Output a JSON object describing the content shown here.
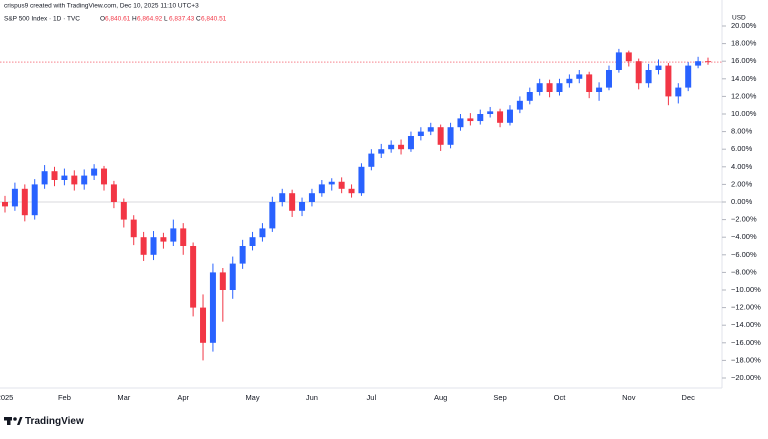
{
  "header": {
    "caption": "crispus9 created with TradingView.com, Dec 10, 2025 11:10 UTC+3",
    "symbol": "S&P 500 Index · 1D · TVC",
    "ohlc": [
      {
        "key": "O",
        "value": "6,840.61"
      },
      {
        "key": "H",
        "value": "6,864.92"
      },
      {
        "key": "L",
        "value": "6,837.43"
      },
      {
        "key": "C",
        "value": "6,840.51"
      }
    ],
    "currency": "USD"
  },
  "footer": {
    "brand": "TradingView"
  },
  "chart_data": {
    "type": "candlestick",
    "categories": [
      "2025",
      null,
      null,
      null,
      null,
      null,
      "Feb",
      null,
      null,
      null,
      null,
      null,
      "Mar",
      null,
      null,
      null,
      null,
      null,
      "Apr",
      null,
      null,
      null,
      null,
      null,
      null,
      "May",
      null,
      null,
      null,
      null,
      null,
      "Jun",
      null,
      null,
      null,
      null,
      null,
      "Jul",
      null,
      null,
      null,
      null,
      null,
      null,
      "Aug",
      null,
      null,
      null,
      null,
      null,
      "Sep",
      null,
      null,
      null,
      null,
      null,
      "Oct",
      null,
      null,
      null,
      null,
      null,
      null,
      "Nov",
      null,
      null,
      null,
      null,
      null,
      "Dec",
      null,
      null
    ],
    "open": [
      0,
      -0.5,
      1.5,
      -1.5,
      2,
      3.5,
      2.5,
      3,
      2,
      3,
      3.8,
      2,
      0,
      -2,
      -4,
      -6,
      -4,
      -4.5,
      -3,
      -5,
      -12,
      -16,
      -8,
      -10,
      -7,
      -5,
      -4,
      -3,
      0,
      1,
      -1,
      0,
      1,
      2,
      2.3,
      1.5,
      1,
      4,
      5.5,
      6,
      6.5,
      6,
      7.5,
      8,
      8.5,
      6.5,
      8.5,
      9.5,
      9.2,
      10,
      10.3,
      9,
      10.5,
      11.5,
      12.5,
      13.5,
      12.5,
      13.5,
      14,
      14.5,
      12.5,
      13,
      15,
      17,
      16,
      13.5,
      15,
      15.5,
      12,
      13,
      15.5,
      16
    ],
    "high": [
      0.7,
      2.2,
      2,
      2.6,
      4.2,
      4,
      3.8,
      3.6,
      3.7,
      4.3,
      4.1,
      2.4,
      0.4,
      -1.5,
      -3.4,
      -3.3,
      -3.5,
      -2,
      -2.4,
      -4.6,
      -10.5,
      -7,
      -7.5,
      -6.2,
      -4.3,
      -3.4,
      -2.4,
      0.6,
      1.5,
      1.4,
      0.5,
      1.5,
      2.5,
      2.7,
      2.8,
      2,
      4.4,
      6,
      6.6,
      7,
      7.1,
      8,
      8.5,
      9,
      8.8,
      9,
      10,
      10.1,
      10.5,
      10.8,
      10.6,
      11,
      12,
      13,
      14,
      13.9,
      14,
      14.5,
      15,
      14.8,
      13.6,
      15.5,
      17.4,
      17.2,
      16.3,
      15.7,
      16.2,
      15.8,
      13.5,
      15.9,
      16.5,
      16.4
    ],
    "low": [
      -1.2,
      -1,
      -2.2,
      -2,
      1.5,
      1.8,
      1.9,
      1.3,
      1.4,
      2.5,
      1.3,
      -0.7,
      -2.9,
      -4.9,
      -6.7,
      -6.6,
      -5.3,
      -5,
      -6,
      -13,
      -18,
      -17,
      -13.6,
      -11,
      -7.6,
      -5.5,
      -4.5,
      -3.4,
      -0.5,
      -1.7,
      -1.6,
      -0.5,
      0.6,
      1.3,
      1,
      0.5,
      0.7,
      3.6,
      5,
      5.6,
      5.4,
      5.7,
      7,
      7.6,
      5.8,
      6.1,
      8.1,
      8.7,
      8.8,
      9.6,
      8.5,
      8.7,
      10.1,
      11.1,
      12.1,
      11.9,
      12.1,
      13,
      13.5,
      11.8,
      11.5,
      12.7,
      14.7,
      15.4,
      12.8,
      13,
      14.5,
      11,
      11.2,
      12.6,
      15.2,
      15.6
    ],
    "close": [
      -0.5,
      1.5,
      -1.5,
      2,
      3.5,
      2.5,
      3,
      2,
      3,
      3.8,
      2,
      0,
      -2,
      -4,
      -6,
      -4,
      -4.5,
      -3,
      -5,
      -12,
      -16,
      -8,
      -10,
      -7,
      -5,
      -4,
      -3,
      0,
      1,
      -1,
      0,
      1,
      2,
      2.3,
      1.5,
      1,
      4,
      5.5,
      6,
      6.5,
      6,
      7.5,
      8,
      8.5,
      6.5,
      8.5,
      9.5,
      9.2,
      10,
      10.3,
      9,
      10.5,
      11.5,
      12.5,
      13.5,
      12.5,
      13.5,
      14,
      14.5,
      12.5,
      13,
      15,
      17,
      16,
      13.5,
      15,
      15.5,
      12,
      13,
      15.5,
      16,
      15.9
    ],
    "up_color": "#2962ff",
    "down_color": "#f23645",
    "ylim": [
      -21.5,
      21.5
    ],
    "yticks": [
      {
        "value": 20,
        "label": "20.00%"
      },
      {
        "value": 18,
        "label": "18.00%"
      },
      {
        "value": 16,
        "label": "16.00%"
      },
      {
        "value": 14,
        "label": "14.00%"
      },
      {
        "value": 12,
        "label": "12.00%"
      },
      {
        "value": 10,
        "label": "10.00%"
      },
      {
        "value": 8,
        "label": "8.00%"
      },
      {
        "value": 6,
        "label": "6.00%"
      },
      {
        "value": 4,
        "label": "4.00%"
      },
      {
        "value": 2,
        "label": "2.00%"
      },
      {
        "value": 0,
        "label": "0.00%"
      },
      {
        "value": -2,
        "label": "−2.00%"
      },
      {
        "value": -4,
        "label": "−4.00%"
      },
      {
        "value": -6,
        "label": "−6.00%"
      },
      {
        "value": -8,
        "label": "−8.00%"
      },
      {
        "value": -10,
        "label": "−10.00%"
      },
      {
        "value": -12,
        "label": "−12.00%"
      },
      {
        "value": -14,
        "label": "−14.00%"
      },
      {
        "value": -16,
        "label": "−16.00%"
      },
      {
        "value": -18,
        "label": "−18.00%"
      },
      {
        "value": -20,
        "label": "−20.00%"
      }
    ],
    "grid": false
  }
}
